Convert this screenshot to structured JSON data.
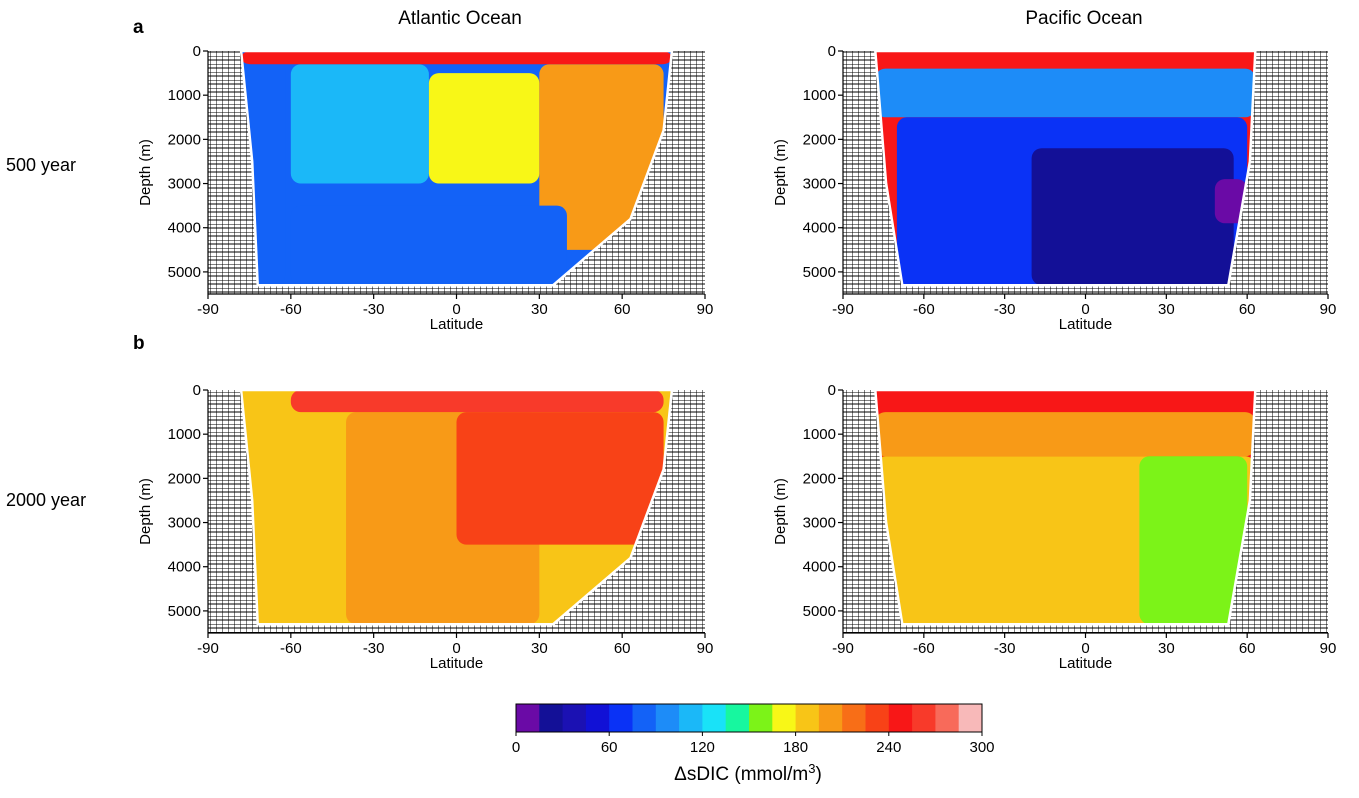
{
  "figure": {
    "panel_labels": [
      "a",
      "b"
    ],
    "column_titles": [
      "Atlantic Ocean",
      "Pacific Ocean"
    ],
    "row_labels": [
      "500 year",
      "2000 year"
    ]
  },
  "colorbar": {
    "title_prefix": "ΔsDIC (mmol/m",
    "title_sup": "3",
    "title_suffix": ")",
    "min": 0,
    "max": 300,
    "step": 15,
    "tick_values": [
      0,
      60,
      120,
      180,
      240,
      300
    ],
    "colors": [
      "#6a0aa6",
      "#131097",
      "#1b11b3",
      "#1111d6",
      "#0a32f6",
      "#1362f7",
      "#1d8cf8",
      "#1bb8f8",
      "#19e2f8",
      "#17f79f",
      "#7cf318",
      "#f8f717",
      "#f8c517",
      "#f89a17",
      "#f86e17",
      "#f84217",
      "#f81717",
      "#f83a2a",
      "#f86a5a",
      "#f8b9b9"
    ]
  },
  "chart_data": [
    {
      "type": "heatmap",
      "panel": "a",
      "title": "Atlantic Ocean",
      "row_label": "500 year",
      "xlabel": "Latitude",
      "ylabel": "Depth (m)",
      "xlim": [
        -90,
        90
      ],
      "ylim": [
        5500,
        0
      ],
      "xticks": [
        -90,
        -60,
        -30,
        0,
        30,
        60,
        90
      ],
      "yticks": [
        0,
        1000,
        2000,
        3000,
        4000,
        5000
      ],
      "ocean_lat_range": [
        -78,
        78
      ],
      "field_units": "mmol/m3",
      "regions": [
        {
          "lat_range": [
            -78,
            -62
          ],
          "depth_range": [
            200,
            5300
          ],
          "value": 75
        },
        {
          "lat_range": [
            -60,
            -10
          ],
          "depth_range": [
            300,
            3000
          ],
          "value": 115
        },
        {
          "lat_range": [
            -10,
            30
          ],
          "depth_range": [
            500,
            3000
          ],
          "value": 170
        },
        {
          "lat_range": [
            30,
            75
          ],
          "depth_range": [
            300,
            4500
          ],
          "value": 195
        },
        {
          "lat_range": [
            -60,
            40
          ],
          "depth_range": [
            3500,
            5300
          ],
          "value": 80
        },
        {
          "lat_range": [
            -78,
            78
          ],
          "depth_range": [
            0,
            300
          ],
          "value": 245
        }
      ]
    },
    {
      "type": "heatmap",
      "panel": "a",
      "title": "Pacific Ocean",
      "row_label": "500 year",
      "xlabel": "Latitude",
      "ylabel": "Depth (m)",
      "xlim": [
        -90,
        90
      ],
      "ylim": [
        5500,
        0
      ],
      "xticks": [
        -90,
        -60,
        -30,
        0,
        30,
        60,
        90
      ],
      "yticks": [
        0,
        1000,
        2000,
        3000,
        4000,
        5000
      ],
      "ocean_lat_range": [
        -78,
        63
      ],
      "field_units": "mmol/m3",
      "regions": [
        {
          "lat_range": [
            -78,
            63
          ],
          "depth_range": [
            0,
            400
          ],
          "value": 240
        },
        {
          "lat_range": [
            -78,
            63
          ],
          "depth_range": [
            400,
            1500
          ],
          "value": 100
        },
        {
          "lat_range": [
            -70,
            60
          ],
          "depth_range": [
            1500,
            5300
          ],
          "value": 60
        },
        {
          "lat_range": [
            -20,
            55
          ],
          "depth_range": [
            2200,
            5300
          ],
          "value": 25
        },
        {
          "lat_range": [
            48,
            60
          ],
          "depth_range": [
            2900,
            3900
          ],
          "value": 8
        }
      ]
    },
    {
      "type": "heatmap",
      "panel": "b",
      "title": "Atlantic Ocean",
      "row_label": "2000 year",
      "xlabel": "Latitude",
      "ylabel": "Depth (m)",
      "xlim": [
        -90,
        90
      ],
      "ylim": [
        5500,
        0
      ],
      "xticks": [
        -90,
        -60,
        -30,
        0,
        30,
        60,
        90
      ],
      "yticks": [
        0,
        1000,
        2000,
        3000,
        4000,
        5000
      ],
      "ocean_lat_range": [
        -78,
        78
      ],
      "field_units": "mmol/m3",
      "regions": [
        {
          "lat_range": [
            -78,
            -40
          ],
          "depth_range": [
            0,
            5300
          ],
          "value": 180
        },
        {
          "lat_range": [
            -40,
            30
          ],
          "depth_range": [
            500,
            5300
          ],
          "value": 205
        },
        {
          "lat_range": [
            0,
            75
          ],
          "depth_range": [
            500,
            3500
          ],
          "value": 225
        },
        {
          "lat_range": [
            -60,
            75
          ],
          "depth_range": [
            0,
            500
          ],
          "value": 255
        }
      ]
    },
    {
      "type": "heatmap",
      "panel": "b",
      "title": "Pacific Ocean",
      "row_label": "2000 year",
      "xlabel": "Latitude",
      "ylabel": "Depth (m)",
      "xlim": [
        -90,
        90
      ],
      "ylim": [
        5500,
        0
      ],
      "xticks": [
        -90,
        -60,
        -30,
        0,
        30,
        60,
        90
      ],
      "yticks": [
        0,
        1000,
        2000,
        3000,
        4000,
        5000
      ],
      "ocean_lat_range": [
        -78,
        63
      ],
      "field_units": "mmol/m3",
      "regions": [
        {
          "lat_range": [
            -78,
            63
          ],
          "depth_range": [
            0,
            500
          ],
          "value": 245
        },
        {
          "lat_range": [
            -78,
            63
          ],
          "depth_range": [
            500,
            1500
          ],
          "value": 195
        },
        {
          "lat_range": [
            -78,
            63
          ],
          "depth_range": [
            1500,
            5300
          ],
          "value": 180
        },
        {
          "lat_range": [
            20,
            60
          ],
          "depth_range": [
            1500,
            5300
          ],
          "value": 160
        }
      ]
    }
  ]
}
